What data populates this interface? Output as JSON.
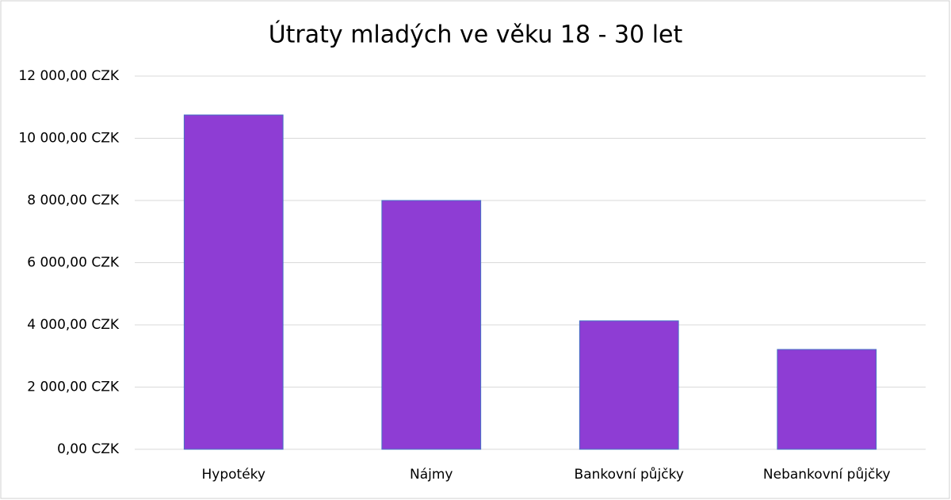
{
  "chart_data": {
    "type": "bar",
    "title": "Útraty mladých ve věku 18 - 30 let",
    "categories": [
      "Hypotéky",
      "Nájmy",
      "Bankovní půjčky",
      "Nebankovní půjčky"
    ],
    "values": [
      10750,
      8000,
      4130,
      3210
    ],
    "color": "#8e3dd4",
    "ylim": [
      0,
      12000
    ],
    "yticks": [
      {
        "value": 0,
        "label": "0,00 CZK"
      },
      {
        "value": 2000,
        "label": "2 000,00 CZK"
      },
      {
        "value": 4000,
        "label": "4 000,00 CZK"
      },
      {
        "value": 6000,
        "label": "6 000,00 CZK"
      },
      {
        "value": 8000,
        "label": "8 000,00 CZK"
      },
      {
        "value": 10000,
        "label": "10 000,00 CZK"
      },
      {
        "value": 12000,
        "label": "12 000,00 CZK"
      }
    ],
    "grid": true
  }
}
